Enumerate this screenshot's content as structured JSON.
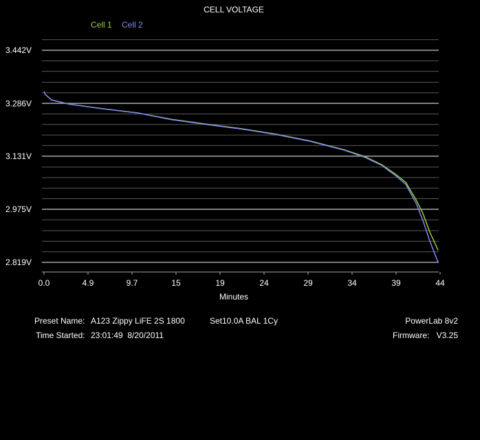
{
  "chart_data": {
    "type": "line",
    "title": "CELL VOLTAGE",
    "x_label": "Minutes",
    "x": [
      0,
      0.15,
      0.84,
      2.73,
      6.53,
      10.33,
      14.12,
      17.92,
      21.72,
      25.52,
      29.31,
      33.11,
      35.39,
      37.29,
      38.81,
      39.95,
      41.08,
      41.84,
      42.6,
      43.51
    ],
    "series": [
      {
        "name": "Cell 1",
        "color": "#9ccc3c",
        "values": [
          3.321,
          3.312,
          3.296,
          3.284,
          3.27,
          3.258,
          3.239,
          3.225,
          3.212,
          3.196,
          3.176,
          3.15,
          3.13,
          3.106,
          3.078,
          3.054,
          3.003,
          2.963,
          2.908,
          2.855
        ]
      },
      {
        "name": "Cell 2",
        "color": "#8088f0",
        "values": [
          3.321,
          3.312,
          3.296,
          3.284,
          3.27,
          3.258,
          3.238,
          3.224,
          3.211,
          3.195,
          3.175,
          3.149,
          3.128,
          3.104,
          3.074,
          3.048,
          2.993,
          2.942,
          2.882,
          2.819
        ]
      }
    ],
    "xlim": [
      0,
      43.74
    ],
    "xticks": [
      {
        "value": 0,
        "label": "0.0"
      },
      {
        "value": 4.86,
        "label": "4.9"
      },
      {
        "value": 9.72,
        "label": "9.7"
      },
      {
        "value": 14.58,
        "label": "15"
      },
      {
        "value": 19.44,
        "label": "19"
      },
      {
        "value": 24.3,
        "label": "24"
      },
      {
        "value": 29.16,
        "label": "29"
      },
      {
        "value": 34.02,
        "label": "34"
      },
      {
        "value": 38.88,
        "label": "39"
      },
      {
        "value": 43.74,
        "label": "44"
      }
    ],
    "ylim": [
      2.819,
      3.442
    ],
    "yticks": [
      {
        "value": 3.442,
        "label": "3.442V"
      },
      {
        "value": 3.286,
        "label": "3.286V"
      },
      {
        "value": 3.131,
        "label": "3.131V"
      },
      {
        "value": 2.975,
        "label": "2.975V"
      },
      {
        "value": 2.819,
        "label": "2.819V"
      }
    ],
    "minor_yticks": [
      3.473,
      3.411,
      3.38,
      3.348,
      3.317,
      3.255,
      3.224,
      3.193,
      3.162,
      3.099,
      3.068,
      3.037,
      3.006,
      2.944,
      2.912,
      2.881,
      2.85
    ],
    "grid": true
  },
  "footer": {
    "preset_label": "Preset Name:",
    "preset": "A123 Zippy LiFE 2S 1800",
    "setting": "Set10.0A BAL 1Cy",
    "device": "PowerLab 8v2",
    "time_label": "Time Started:",
    "time": "23:01:49  8/20/2011",
    "firmware_label": "Firmware:",
    "firmware": "V3.25"
  }
}
